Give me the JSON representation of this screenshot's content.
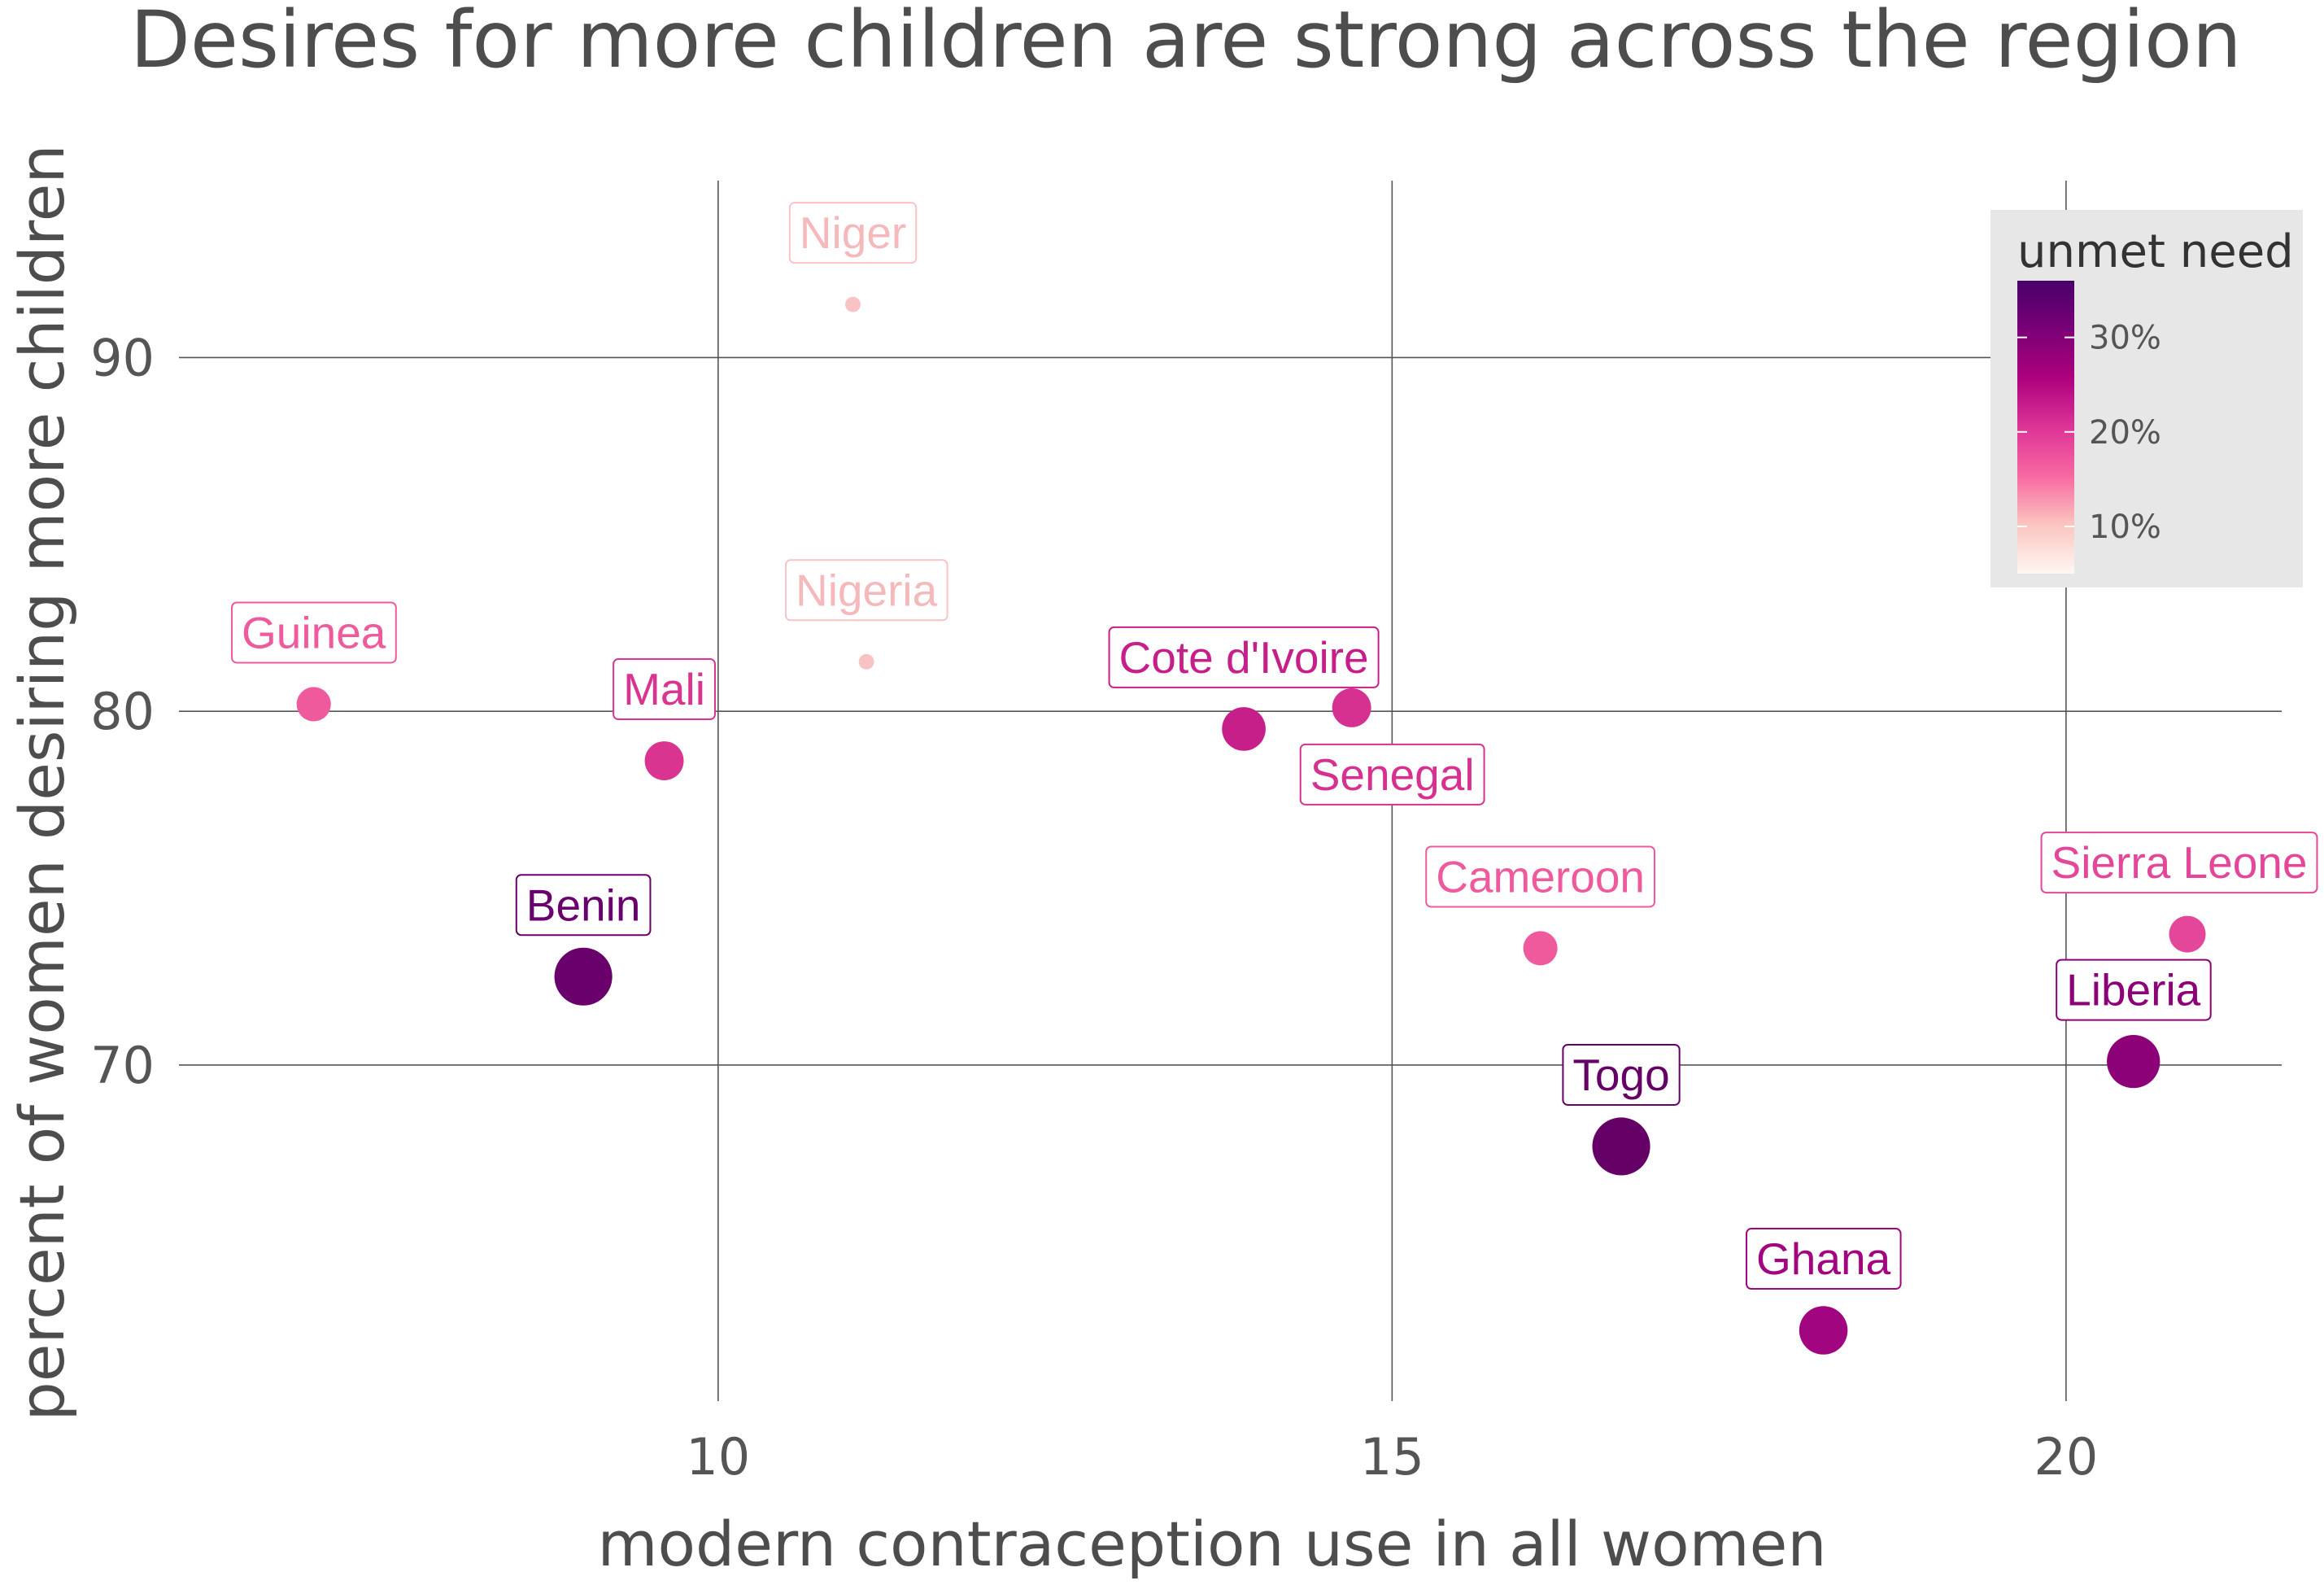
{
  "chart_data": {
    "type": "scatter",
    "title": "Desires for more children are strong across the region",
    "xlabel": "modern contraception use in all women",
    "ylabel": "percent of women desiring more children",
    "xlim": [
      6.0,
      21.6
    ],
    "ylim": [
      60.5,
      95.0
    ],
    "x_ticks": [
      10,
      15,
      20
    ],
    "y_ticks": [
      70,
      80,
      90
    ],
    "grid": true,
    "legend": {
      "title": "unmet need",
      "placement": "top-right",
      "ticks": [
        "10%",
        "20%",
        "30%"
      ],
      "tick_values": [
        10,
        20,
        30
      ],
      "range": [
        5,
        36
      ],
      "colors": [
        "#fff7f3",
        "#fcc5c0",
        "#f768a1",
        "#dd3497",
        "#ae017e",
        "#7a0177",
        "#49006a"
      ]
    },
    "points": [
      {
        "name": "Niger",
        "x": 11.0,
        "y": 91.5,
        "unmet_need": 16,
        "color": "#f9c3c4"
      },
      {
        "name": "Nigeria",
        "x": 11.1,
        "y": 81.4,
        "unmet_need": 16,
        "color": "#f9c3c4"
      },
      {
        "name": "Guinea",
        "x": 7.0,
        "y": 80.2,
        "unmet_need": 24,
        "color": "#ef5a9c"
      },
      {
        "name": "Mali",
        "x": 9.6,
        "y": 78.6,
        "unmet_need": 26,
        "color": "#d9348f"
      },
      {
        "name": "Cote d'Ivoire",
        "x": 13.9,
        "y": 79.5,
        "unmet_need": 28,
        "color": "#c61f8a"
      },
      {
        "name": "Senegal",
        "x": 14.7,
        "y": 80.1,
        "unmet_need": 26,
        "color": "#d63190"
      },
      {
        "name": "Benin",
        "x": 9.0,
        "y": 72.5,
        "unmet_need": 34,
        "color": "#6a006b"
      },
      {
        "name": "Cameroon",
        "x": 16.1,
        "y": 73.3,
        "unmet_need": 24,
        "color": "#ef5a9c"
      },
      {
        "name": "Sierra Leone",
        "x": 20.9,
        "y": 73.7,
        "unmet_need": 25,
        "color": "#e4479a"
      },
      {
        "name": "Liberia",
        "x": 20.5,
        "y": 70.1,
        "unmet_need": 32,
        "color": "#8c0078"
      },
      {
        "name": "Togo",
        "x": 16.7,
        "y": 67.7,
        "unmet_need": 34,
        "color": "#650067"
      },
      {
        "name": "Ghana",
        "x": 18.2,
        "y": 62.5,
        "unmet_need": 30,
        "color": "#a10580"
      }
    ]
  }
}
